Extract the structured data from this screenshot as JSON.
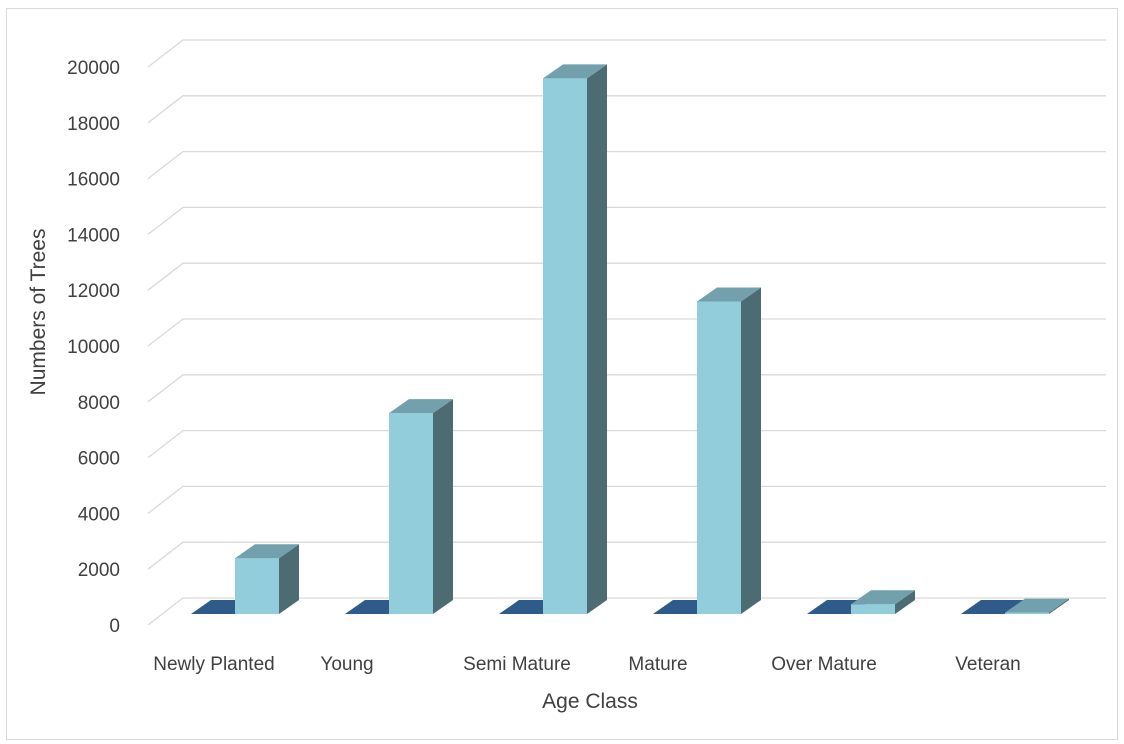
{
  "chart_data": {
    "type": "bar",
    "style": "3d-clustered-column",
    "title": "",
    "xlabel": "Age Class",
    "ylabel": "Numbers of Trees",
    "categories": [
      "Newly Planted",
      "Young",
      "Semi Mature",
      "Mature",
      "Over Mature",
      "Veteran"
    ],
    "series": [
      {
        "values": [
          0,
          0,
          0,
          0,
          0,
          0
        ],
        "color": "#2e5b8a"
      },
      {
        "values": [
          2000,
          7200,
          19200,
          11200,
          350,
          50
        ],
        "color": "#92cddc"
      }
    ],
    "yticks": [
      "0",
      "2000",
      "4000",
      "6000",
      "8000",
      "10000",
      "12000",
      "14000",
      "16000",
      "18000",
      "20000"
    ],
    "ylim": [
      0,
      20000
    ],
    "grid": true,
    "legend": "none"
  }
}
